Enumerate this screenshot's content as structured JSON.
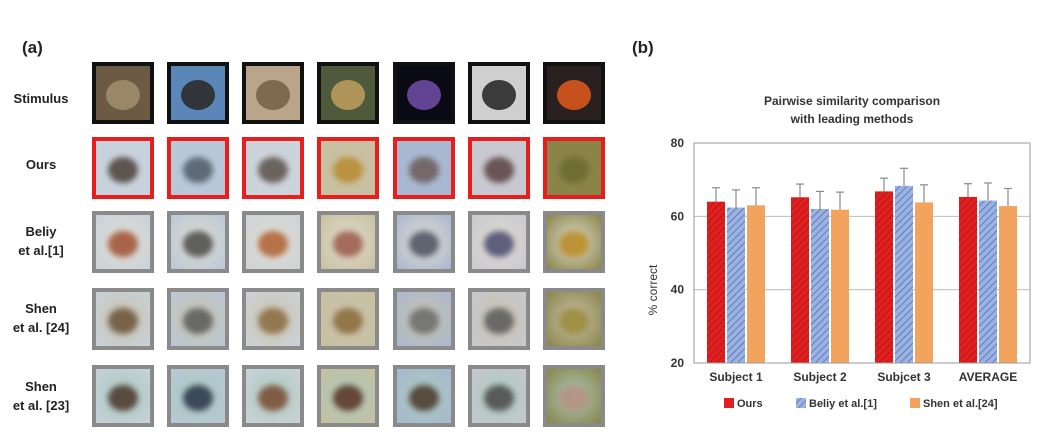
{
  "panel_a": {
    "label": "(a)",
    "row_labels": [
      {
        "line1": "Stimulus",
        "line2": ""
      },
      {
        "line1": "Ours",
        "line2": ""
      },
      {
        "line1": "Beliy",
        "line2": "et al.[1]"
      },
      {
        "line1": "Shen",
        "line2": "et al. [24]"
      },
      {
        "line1": "Shen",
        "line2": "et al. [23]"
      }
    ],
    "columns": 7
  },
  "panel_b": {
    "label": "(b)"
  },
  "chart_data": {
    "type": "bar",
    "title": "Pairwise similarity comparison",
    "subtitle": "with leading methods",
    "ylabel": "% correct",
    "xlabel": "",
    "ylim": [
      20,
      80
    ],
    "yticks": [
      20,
      40,
      60,
      80
    ],
    "grid": true,
    "legend_position": "bottom",
    "categories": [
      "Subject 1",
      "Subject 2",
      "Subjcet 3",
      "AVERAGE"
    ],
    "series": [
      {
        "name": "Ours",
        "color": "#e02020",
        "hatch": "diag",
        "values": [
          64.0,
          65.2,
          66.8,
          65.3
        ],
        "err": [
          3.8,
          3.6,
          3.6,
          3.6
        ]
      },
      {
        "name": "Beliy et al.[1]",
        "color": "#8fa8dc",
        "hatch": "diag",
        "values": [
          62.4,
          62.0,
          68.3,
          64.3
        ],
        "err": [
          4.8,
          4.8,
          4.8,
          4.8
        ]
      },
      {
        "name": "Shen et al.[24]",
        "color": "#f2a45e",
        "hatch": "none",
        "values": [
          63.0,
          61.8,
          63.8,
          62.8
        ],
        "err": [
          4.8,
          4.8,
          4.8,
          4.8
        ]
      }
    ]
  }
}
